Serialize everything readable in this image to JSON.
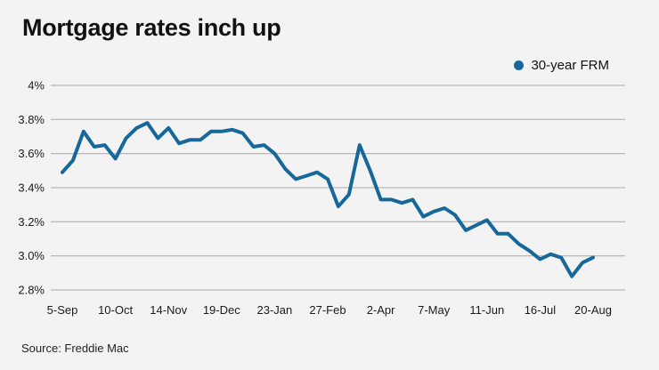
{
  "page": {
    "title": "Mortgage rates inch up",
    "source": "Source: Freddie Mac"
  },
  "legend": {
    "label": "30-year FRM"
  },
  "colors": {
    "background": "#f3f3f3",
    "line": "#16679a",
    "grid": "#a8a8a8",
    "title_text": "#111111",
    "axis_text": "#1a1a1a"
  },
  "chart_data": {
    "type": "line",
    "title": "Mortgage rates inch up",
    "legend_position": "top-right",
    "grid": "horizontal-only",
    "ylabel": "",
    "xlabel": "",
    "ylim": [
      2.8,
      4.0
    ],
    "y_ticks": [
      4.0,
      3.8,
      3.6,
      3.4,
      3.2,
      3.0,
      2.8
    ],
    "y_tick_labels": [
      "4%",
      "3.8%",
      "3.6%",
      "3.4%",
      "3.2%",
      "3.0%",
      "2.8%"
    ],
    "x_tick_labels": [
      "5-Sep",
      "10-Oct",
      "14-Nov",
      "19-Dec",
      "23-Jan",
      "27-Feb",
      "2-Apr",
      "7-May",
      "11-Jun",
      "16-Jul",
      "20-Aug"
    ],
    "x_tick_indices": [
      0,
      5,
      10,
      15,
      20,
      25,
      30,
      35,
      40,
      45,
      50
    ],
    "x_unit": "weekly observations, ticks every 5 weeks",
    "series": [
      {
        "name": "30-year FRM",
        "color": "#16679a",
        "values": [
          3.49,
          3.56,
          3.73,
          3.64,
          3.65,
          3.57,
          3.69,
          3.75,
          3.78,
          3.69,
          3.75,
          3.66,
          3.68,
          3.68,
          3.73,
          3.73,
          3.74,
          3.72,
          3.64,
          3.65,
          3.6,
          3.51,
          3.45,
          3.47,
          3.49,
          3.45,
          3.29,
          3.36,
          3.65,
          3.5,
          3.33,
          3.33,
          3.31,
          3.33,
          3.23,
          3.26,
          3.28,
          3.24,
          3.15,
          3.18,
          3.21,
          3.13,
          3.13,
          3.07,
          3.03,
          2.98,
          3.01,
          2.99,
          2.88,
          2.96,
          2.99
        ]
      }
    ],
    "source": "Source: Freddie Mac"
  }
}
